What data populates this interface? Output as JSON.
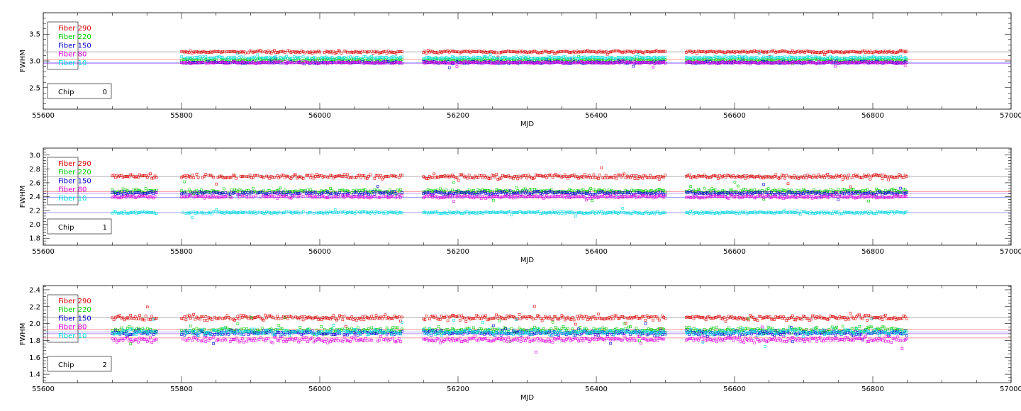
{
  "chart_data": [
    {
      "type": "scatter",
      "title": "",
      "xlabel": "MJD",
      "ylabel": "FWHM",
      "xlim": [
        55600,
        57000
      ],
      "ylim": [
        2.1,
        3.9
      ],
      "xticks": [
        55600,
        55800,
        56000,
        56200,
        56400,
        56600,
        56800,
        57000
      ],
      "yticks": [
        2.5,
        3.0,
        3.5
      ],
      "chip_label": "Chip",
      "chip_number": "0",
      "reference_lines": [
        {
          "y": 3.17,
          "color": "#999999"
        },
        {
          "y": 3.03,
          "color": "#ff8080"
        },
        {
          "y": 2.97,
          "color": "#8080ff"
        },
        {
          "y": 2.95,
          "color": "#aa66ff"
        }
      ],
      "series": [
        {
          "name": "Fiber 290",
          "color": "#dd0000",
          "level": 3.17,
          "noise": 0.02
        },
        {
          "name": "Fiber 220",
          "color": "#00cc00",
          "level": 3.02,
          "noise": 0.02
        },
        {
          "name": "Fiber 150",
          "color": "#0000cc",
          "level": 2.97,
          "noise": 0.02
        },
        {
          "name": "Fiber 80",
          "color": "#dd00dd",
          "level": 2.97,
          "noise": 0.02
        },
        {
          "name": "Fiber 10",
          "color": "#00dddd",
          "level": 3.06,
          "noise": 0.02
        }
      ]
    },
    {
      "type": "scatter",
      "title": "",
      "xlabel": "MJD",
      "ylabel": "FWHM",
      "xlim": [
        55600,
        57000
      ],
      "ylim": [
        1.7,
        3.1
      ],
      "xticks": [
        55600,
        55800,
        56000,
        56200,
        56400,
        56600,
        56800,
        57000
      ],
      "yticks": [
        1.8,
        2.0,
        2.2,
        2.4,
        2.6,
        2.8,
        3.0
      ],
      "chip_label": "Chip",
      "chip_number": "1",
      "reference_lines": [
        {
          "y": 2.69,
          "color": "#999999"
        },
        {
          "y": 2.47,
          "color": "#ff8080"
        },
        {
          "y": 2.45,
          "color": "#aa66ff"
        },
        {
          "y": 2.39,
          "color": "#8080ff"
        },
        {
          "y": 2.17,
          "color": "#8080ff"
        }
      ],
      "series": [
        {
          "name": "Fiber 290",
          "color": "#dd0000",
          "level": 2.69,
          "noise": 0.03
        },
        {
          "name": "Fiber 220",
          "color": "#00cc00",
          "level": 2.48,
          "noise": 0.03
        },
        {
          "name": "Fiber 150",
          "color": "#0000cc",
          "level": 2.45,
          "noise": 0.025
        },
        {
          "name": "Fiber 80",
          "color": "#dd00dd",
          "level": 2.4,
          "noise": 0.02
        },
        {
          "name": "Fiber 10",
          "color": "#00dddd",
          "level": 2.17,
          "noise": 0.015
        }
      ]
    },
    {
      "type": "scatter",
      "title": "",
      "xlabel": "MJD",
      "ylabel": "FWHM",
      "xlim": [
        55600,
        57000
      ],
      "ylim": [
        1.3,
        2.45
      ],
      "xticks": [
        55600,
        55800,
        56000,
        56200,
        56400,
        56600,
        56800,
        57000
      ],
      "yticks": [
        1.4,
        1.6,
        1.8,
        2.0,
        2.2,
        2.4
      ],
      "chip_label": "Chip",
      "chip_number": "2",
      "reference_lines": [
        {
          "y": 2.07,
          "color": "#999999"
        },
        {
          "y": 1.93,
          "color": "#ff8080"
        },
        {
          "y": 1.9,
          "color": "#8080ff"
        },
        {
          "y": 1.88,
          "color": "#aa66ff"
        },
        {
          "y": 1.83,
          "color": "#ff8080"
        }
      ],
      "series": [
        {
          "name": "Fiber 290",
          "color": "#dd0000",
          "level": 2.07,
          "noise": 0.03
        },
        {
          "name": "Fiber 220",
          "color": "#00cc00",
          "level": 1.92,
          "noise": 0.035
        },
        {
          "name": "Fiber 150",
          "color": "#0000cc",
          "level": 1.89,
          "noise": 0.03
        },
        {
          "name": "Fiber 80",
          "color": "#dd00dd",
          "level": 1.81,
          "noise": 0.03
        },
        {
          "name": "Fiber 10",
          "color": "#00dddd",
          "level": 1.9,
          "noise": 0.035
        }
      ]
    }
  ]
}
